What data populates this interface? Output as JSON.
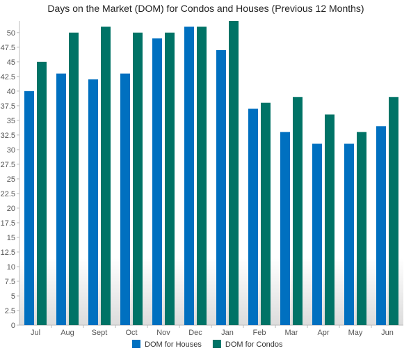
{
  "chart_data": {
    "type": "bar",
    "title": "Days on the Market (DOM) for Condos and Houses (Previous 12 Months)",
    "xlabel": "",
    "ylabel": "",
    "categories": [
      "Jul",
      "Aug",
      "Sept",
      "Oct",
      "Nov",
      "Dec",
      "Jan",
      "Feb",
      "Mar",
      "Apr",
      "May",
      "Jun"
    ],
    "series": [
      {
        "name": "DOM for Houses",
        "color": "#0070c0",
        "values": [
          40,
          43,
          42,
          43,
          49,
          51,
          47,
          37,
          33,
          31,
          31,
          34
        ]
      },
      {
        "name": "DOM for Condos",
        "color": "#007366",
        "values": [
          45,
          50,
          51,
          50,
          50,
          51,
          52,
          38,
          39,
          36,
          33,
          39
        ]
      }
    ],
    "ylim": [
      0,
      52
    ],
    "yticks": [
      "0",
      "2.5",
      "5",
      "7.5",
      "10",
      "12.5",
      "15",
      "17.5",
      "20",
      "22.5",
      "25",
      "27.5",
      "30",
      "32.5",
      "35",
      "37.5",
      "40",
      "42.5",
      "45",
      "47.5",
      "50"
    ],
    "grid": false,
    "legend": "bottom-center"
  }
}
